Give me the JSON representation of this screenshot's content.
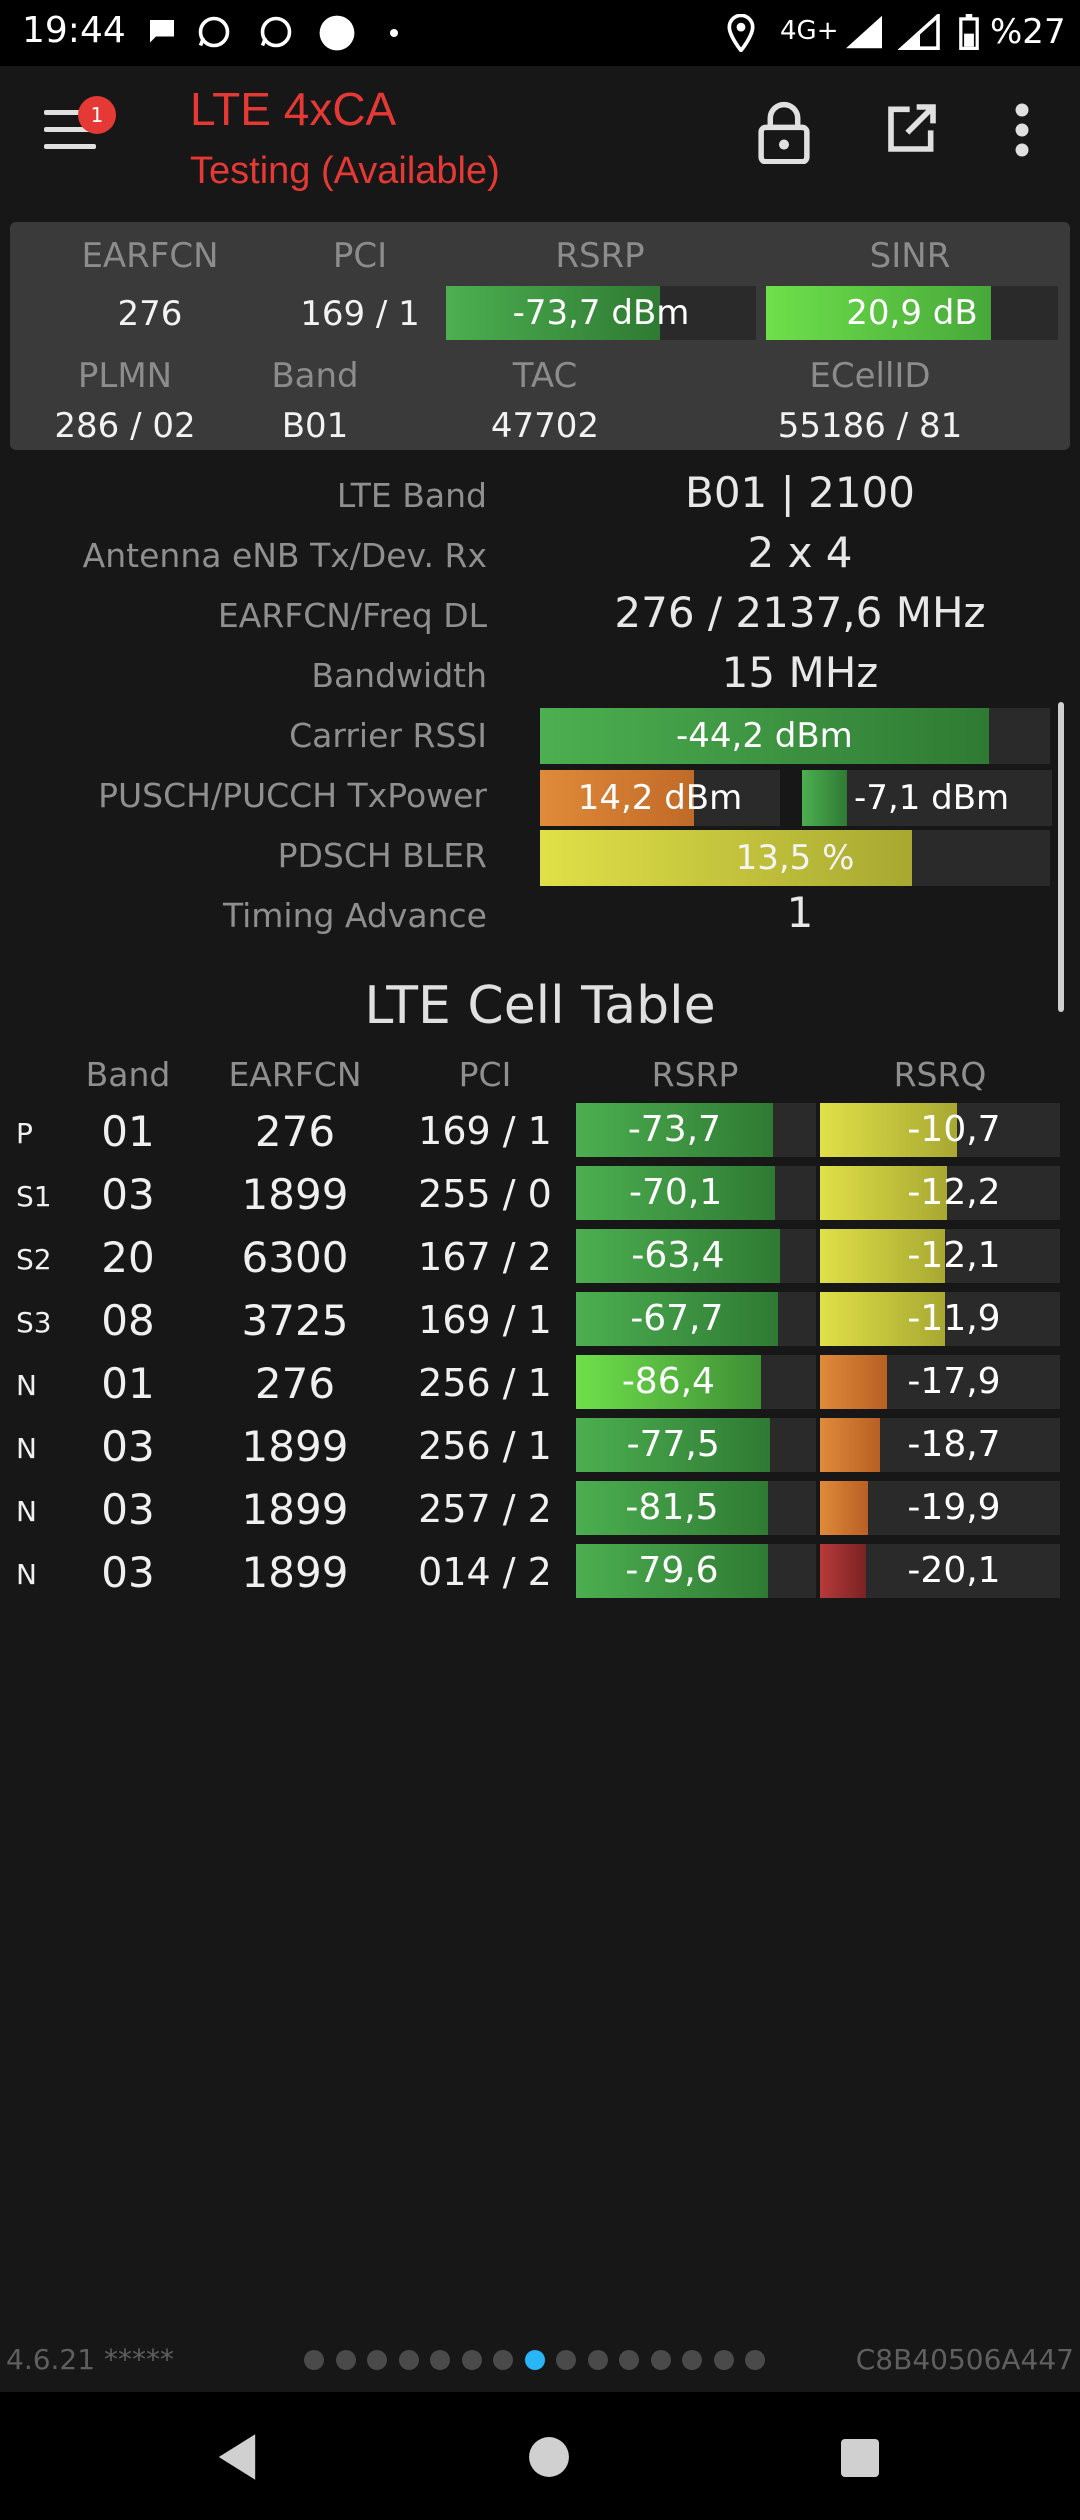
{
  "status_bar": {
    "time": "19:44",
    "network": "4G+",
    "battery": "%27",
    "icons": [
      "chat-icon",
      "whatsapp-icon",
      "whatsapp-icon",
      "circle-icon",
      "dot-icon",
      "location-icon",
      "signal-icon",
      "signal-icon",
      "battery-icon"
    ]
  },
  "app_bar": {
    "badge": "1",
    "title": "LTE 4xCA",
    "subtitle": "Testing (Available)"
  },
  "summary": {
    "earfcn_label": "EARFCN",
    "pci_label": "PCI",
    "rsrp_label": "RSRP",
    "sinr_label": "SINR",
    "earfcn": "276",
    "pci": "169 / 1",
    "rsrp": "-73,7 dBm",
    "rsrp_level": 0.69,
    "sinr": "20,9 dB",
    "sinr_level": 0.77,
    "plmn_label": "PLMN",
    "band_label": "Band",
    "tac_label": "TAC",
    "ecellid_label": "ECellID",
    "plmn": "286 / 02",
    "band": "B01",
    "tac": "47702",
    "ecellid": "55186 / 81"
  },
  "details": {
    "lte_band_label": "LTE Band",
    "lte_band": "B01 | 2100",
    "antenna_label": "Antenna eNB Tx/Dev. Rx",
    "antenna": "2 x 4",
    "freq_label": "EARFCN/Freq DL",
    "freq": "276 / 2137,6 MHz",
    "bandwidth_label": "Bandwidth",
    "bandwidth": "15 MHz",
    "rssi_label": "Carrier RSSI",
    "rssi": "-44,2 dBm",
    "rssi_level": 0.88,
    "txpower_label": "PUSCH/PUCCH TxPower",
    "pusch": "14,2 dBm",
    "pusch_level": 0.64,
    "pucch": "-7,1 dBm",
    "pucch_level": 0.18,
    "bler_label": "PDSCH BLER",
    "bler": "13,5 %",
    "bler_level": 0.73,
    "ta_label": "Timing Advance",
    "ta": "1"
  },
  "cell_table": {
    "title": "LTE Cell Table",
    "headers": [
      "Band",
      "EARFCN",
      "PCI",
      "RSRP",
      "RSRQ"
    ],
    "rows": [
      {
        "type": "P",
        "band": "01",
        "earfcn": "276",
        "pci": "169 / 1",
        "rsrp": "-73,7",
        "rsrp_level": 0.82,
        "rsrq": "-10,7",
        "rsrq_level": 0.57
      },
      {
        "type": "S1",
        "band": "03",
        "earfcn": "1899",
        "pci": "255 / 0",
        "rsrp": "-70,1",
        "rsrp_level": 0.83,
        "rsrq": "-12,2",
        "rsrq_level": 0.53
      },
      {
        "type": "S2",
        "band": "20",
        "earfcn": "6300",
        "pci": "167 / 2",
        "rsrp": "-63,4",
        "rsrp_level": 0.85,
        "rsrq": "-12,1",
        "rsrq_level": 0.52
      },
      {
        "type": "S3",
        "band": "08",
        "earfcn": "3725",
        "pci": "169 / 1",
        "rsrp": "-67,7",
        "rsrp_level": 0.84,
        "rsrq": "-11,9",
        "rsrq_level": 0.52
      },
      {
        "type": "N",
        "band": "01",
        "earfcn": "276",
        "pci": "256 / 1",
        "rsrp": "-86,4",
        "rsrp_level": 0.77,
        "rsrq": "-17,9",
        "rsrq_level": 0.28
      },
      {
        "type": "N",
        "band": "03",
        "earfcn": "1899",
        "pci": "256 / 1",
        "rsrp": "-77,5",
        "rsrp_level": 0.81,
        "rsrq": "-18,7",
        "rsrq_level": 0.25
      },
      {
        "type": "N",
        "band": "03",
        "earfcn": "1899",
        "pci": "257 / 2",
        "rsrp": "-81,5",
        "rsrp_level": 0.8,
        "rsrq": "-19,9",
        "rsrq_level": 0.2
      },
      {
        "type": "N",
        "band": "03",
        "earfcn": "1899",
        "pci": "014 / 2",
        "rsrp": "-79,6",
        "rsrp_level": 0.8,
        "rsrq": "-20,1",
        "rsrq_level": 0.19
      }
    ]
  },
  "footer": {
    "version": "4.6.21 *****",
    "device_id": "C8B40506A447",
    "page_count": 15,
    "active_page": 8
  },
  "colors": {
    "accent": "#e53935",
    "green": "#4caf50",
    "orange": "#e07a2e",
    "yellow": "#d4d43a",
    "red": "#9a2a2a",
    "dot_active": "#29b6f6"
  }
}
